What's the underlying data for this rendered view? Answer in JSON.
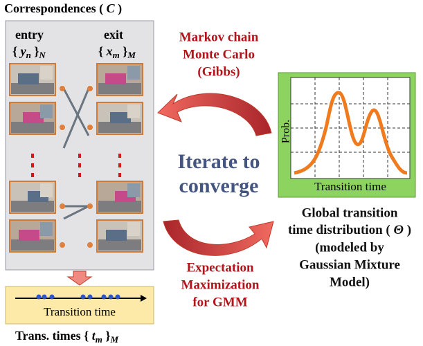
{
  "left_panel": {
    "title": {
      "text": "Correspondences (",
      "var": "C",
      "close": ")"
    },
    "entry": {
      "label": "entry",
      "open": "{",
      "var": "y",
      "sub": "n",
      "close": "}",
      "outer_sub": "N"
    },
    "exit": {
      "label": "exit",
      "open": "{",
      "var": "x",
      "sub": "m",
      "close": "}",
      "outer_sub": "M"
    }
  },
  "top_arrow_label": [
    "Markov chain",
    "Monte Carlo",
    "(Gibbs)"
  ],
  "center_label": [
    "Iterate to",
    "converge"
  ],
  "bottom_arrow_label": [
    "Expectation",
    "Maximization",
    "for GMM"
  ],
  "distribution_plot": {
    "y_label": "Prob.",
    "x_label": "Transition time"
  },
  "distribution_caption": {
    "line1": "Global transition",
    "line2": {
      "text": "time distribution (",
      "var": "Θ",
      "close": ")"
    },
    "rest": [
      "(modeled by",
      "Gaussian Mixture",
      "Model)"
    ]
  },
  "transition_box": {
    "axis_label": "Transition time"
  },
  "bottom_caption": {
    "text": "Trans. times {",
    "var": "t",
    "sub": "m",
    "close": "}",
    "outer_sub": "M"
  }
}
